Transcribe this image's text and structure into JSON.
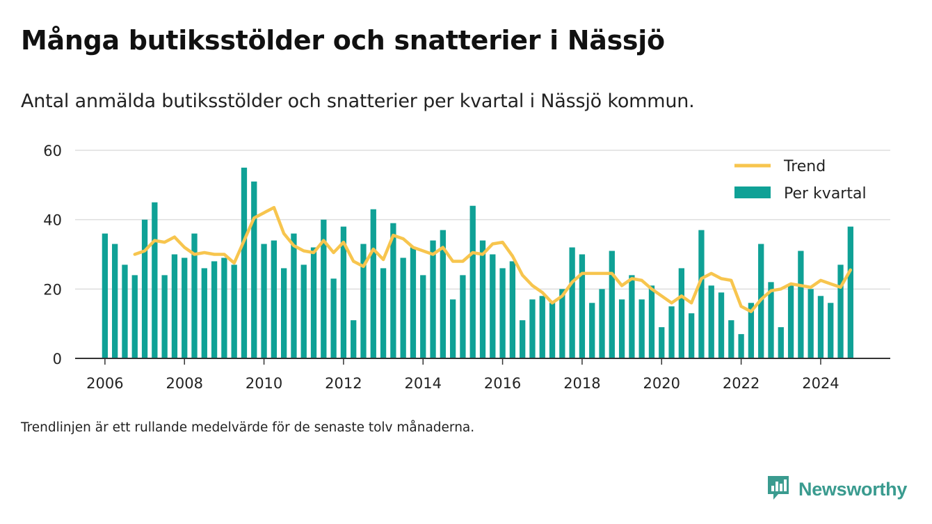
{
  "title": "Många butiksstölder och snatterier i Nässjö",
  "subtitle": "Antal anmälda butiksstölder och snatterier per kvartal i Nässjö kommun.",
  "note": "Trendlinjen är ett rullande medelvärde för de senaste tolv månaderna.",
  "brand": {
    "name": "Newsworthy",
    "icon": "newsworthy-logo-icon",
    "color": "#3a9b8f"
  },
  "chart_data": {
    "type": "bar",
    "x_start_year": 2006,
    "quarters_per_year": 4,
    "xlim": [
      2005.25,
      2025.75
    ],
    "ylim": [
      0,
      60
    ],
    "yticks": [
      0,
      20,
      40,
      60
    ],
    "xticks": [
      2006,
      2008,
      2010,
      2012,
      2014,
      2016,
      2018,
      2020,
      2022,
      2024
    ],
    "grid": true,
    "legend_position": "top-right",
    "colors": {
      "bars": "#0fa196",
      "trend": "#f7c54e",
      "grid": "#dddddd",
      "axis": "#333333"
    },
    "series": [
      {
        "name": "Per kvartal",
        "type": "bar",
        "values": [
          36,
          33,
          27,
          24,
          40,
          45,
          24,
          30,
          29,
          36,
          26,
          28,
          29,
          27,
          55,
          51,
          33,
          34,
          26,
          36,
          27,
          32,
          40,
          23,
          38,
          11,
          33,
          43,
          26,
          39,
          29,
          32,
          24,
          34,
          37,
          17,
          24,
          44,
          34,
          30,
          26,
          28,
          11,
          17,
          18,
          16,
          20,
          32,
          30,
          16,
          20,
          31,
          17,
          24,
          17,
          21,
          9,
          15,
          26,
          13,
          37,
          21,
          19,
          11,
          7,
          16,
          33,
          22,
          9,
          21,
          31,
          20,
          18,
          16,
          27,
          38
        ]
      },
      {
        "name": "Trend",
        "type": "line",
        "values": [
          null,
          null,
          null,
          30,
          31,
          34,
          33.5,
          35,
          32,
          30,
          30.5,
          30,
          30,
          27.5,
          34,
          40.5,
          42,
          43.5,
          36,
          32.5,
          31,
          30.5,
          34,
          30.5,
          33.5,
          28,
          26.5,
          31.5,
          28.5,
          35.5,
          34.5,
          32,
          31,
          30,
          32,
          28,
          28,
          30.5,
          30,
          33,
          33.5,
          29.5,
          24,
          21,
          19,
          16,
          18,
          22,
          24.5,
          24.5,
          24.5,
          24.5,
          21,
          23,
          22.5,
          20,
          18,
          16,
          18,
          16,
          23,
          24.5,
          23,
          22.5,
          15,
          13.5,
          17,
          19.5,
          20,
          21.5,
          21,
          20.5,
          22.5,
          21.5,
          20.5,
          25.5
        ]
      }
    ]
  }
}
